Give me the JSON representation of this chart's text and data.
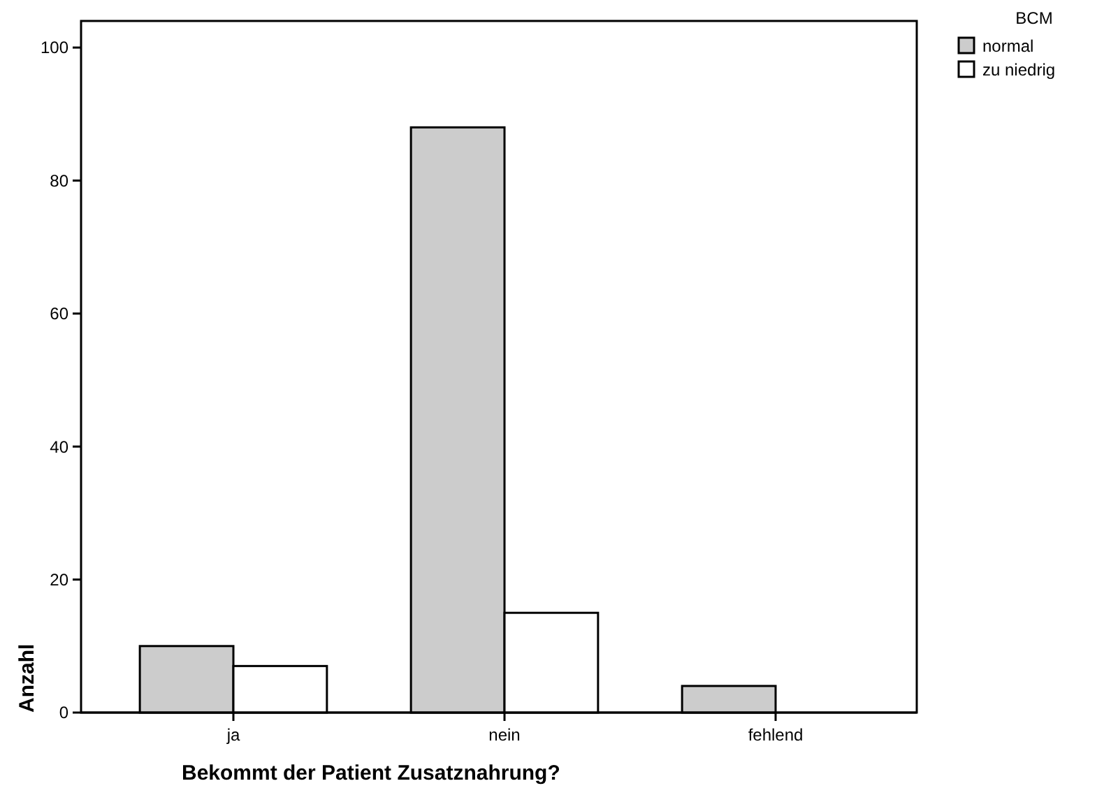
{
  "chart_data": {
    "type": "bar",
    "xlabel": "Bekommt der Patient Zusatznahrung?",
    "ylabel": "Anzahl",
    "legend_title": "BCM",
    "categories": [
      "ja",
      "nein",
      "fehlend"
    ],
    "series": [
      {
        "name": "normal",
        "color": "#cccccc",
        "values": [
          10,
          88,
          4
        ]
      },
      {
        "name": "zu niedrig",
        "color": "#ffffff",
        "values": [
          7,
          15,
          null
        ]
      }
    ],
    "ylim": [
      0,
      104
    ],
    "yticks": [
      0,
      20,
      40,
      60,
      80,
      100
    ],
    "grid": false,
    "legend": "top right"
  }
}
